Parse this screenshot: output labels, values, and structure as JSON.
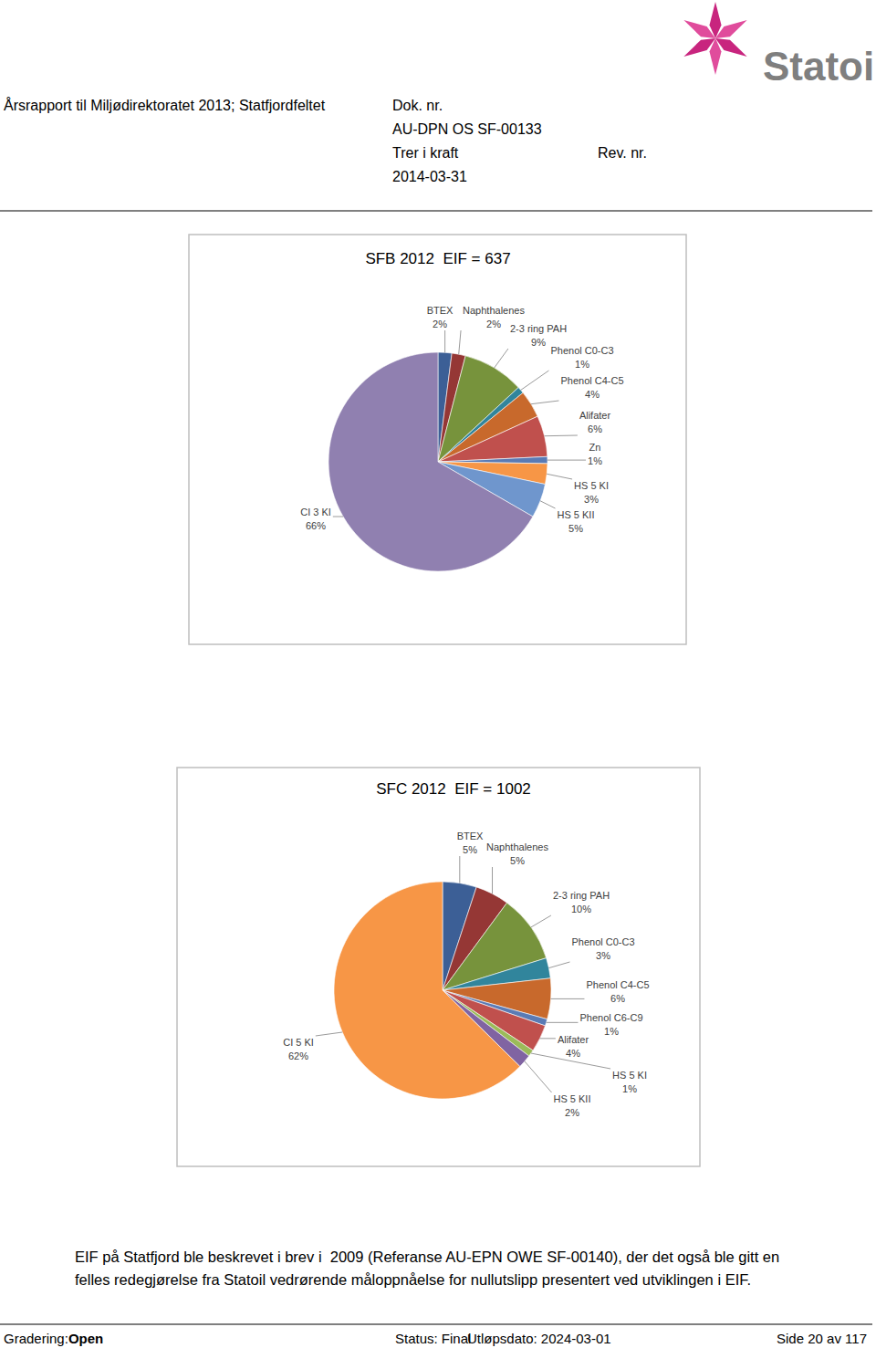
{
  "page": {
    "header": {
      "title": "Årsrapport til Miljødirektoratet 2013; Statfjordfeltet",
      "doc_label": "Dok. nr.",
      "doc_number": "AU-DPN OS SF-00133",
      "valid_label": "Trer i kraft",
      "rev_label": "Rev. nr.",
      "valid_date": "2014-03-31",
      "logo": "Statoil"
    },
    "body": [
      "EIF på Statfjord ble beskrevet i brev i  2009 (Referanse AU-EPN OWE SF-00140), der det også ble gitt en",
      "felles redegjørelse fra Statoil vedrørende måloppnåelse for nullutslipp presentert ved utviklingen i EIF."
    ],
    "footer": {
      "classification_label": "Gradering:",
      "classification": "Open",
      "status": "Status: Final",
      "expiry": "Utløpsdato: 2024-03-01",
      "page": "Side 20 av 117"
    }
  },
  "chart_data": [
    {
      "type": "pie",
      "title": "SFB 2012  EIF = 637",
      "categories": [
        "BTEX",
        "Naphthalenes",
        "2-3 ring PAH",
        "Phenol C0-C3",
        "Phenol C4-C5",
        "Alifater",
        "Zn",
        "HS 5 KI",
        "HS 5 KII",
        "CI 3 KI"
      ],
      "values": [
        2,
        2,
        9,
        1,
        4,
        6,
        1,
        3,
        5,
        66
      ],
      "value_labels": [
        "2%",
        "2%",
        "9%",
        "1%",
        "4%",
        "6%",
        "1%",
        "3%",
        "5%",
        "66%"
      ],
      "colors": [
        "#3c5f96",
        "#953735",
        "#77933c",
        "#31859c",
        "#c8692c",
        "#c0504d",
        "#5a7bb5",
        "#f79646",
        "#6f96cd",
        "#9080b0"
      ],
      "data_labels": true
    },
    {
      "type": "pie",
      "title": "SFC 2012  EIF = 1002",
      "categories": [
        "BTEX",
        "Naphthalenes",
        "2-3 ring PAH",
        "Phenol C0-C3",
        "Phenol C4-C5",
        "Phenol C6-C9",
        "Alifater",
        "HS 5 KI",
        "HS 5 KII",
        "CI 5 KI"
      ],
      "values": [
        5,
        5,
        10,
        3,
        6,
        1,
        4,
        1,
        2,
        62
      ],
      "value_labels": [
        "5%",
        "5%",
        "10%",
        "3%",
        "6%",
        "1%",
        "4%",
        "1%",
        "2%",
        "62%"
      ],
      "colors": [
        "#3c5f96",
        "#953735",
        "#77933c",
        "#31859c",
        "#c8692c",
        "#5a7bb5",
        "#c0504d",
        "#9bbb59",
        "#8064a2",
        "#f79646"
      ],
      "data_labels": true
    }
  ]
}
